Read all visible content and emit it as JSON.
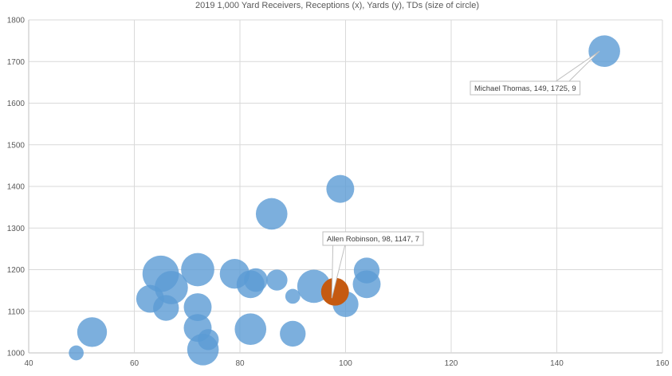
{
  "chart_data": {
    "type": "bubble",
    "title": "2019 1,000 Yard Receivers, Receptions (x), Yards (y), TDs (size of circle)",
    "xlabel": "",
    "ylabel": "",
    "xlim": [
      40,
      160
    ],
    "ylim": [
      1000,
      1800
    ],
    "xticks": [
      40,
      60,
      80,
      100,
      120,
      140,
      160
    ],
    "yticks": [
      1000,
      1100,
      1200,
      1300,
      1400,
      1500,
      1600,
      1700,
      1800
    ],
    "grid": true,
    "colors": {
      "default": "#5b9bd5",
      "highlight": "#c55a11"
    },
    "points": [
      {
        "x": 149,
        "y": 1725,
        "r": 9
      },
      {
        "x": 99,
        "y": 1394,
        "r": 7
      },
      {
        "x": 86,
        "y": 1334,
        "r": 9
      },
      {
        "x": 104,
        "y": 1198,
        "r": 6
      },
      {
        "x": 104,
        "y": 1165,
        "r": 7
      },
      {
        "x": 94,
        "y": 1160,
        "r": 10
      },
      {
        "x": 100,
        "y": 1117,
        "r": 6
      },
      {
        "x": 90,
        "y": 1136,
        "r": 2
      },
      {
        "x": 87,
        "y": 1175,
        "r": 4
      },
      {
        "x": 83,
        "y": 1175,
        "r": 5
      },
      {
        "x": 82,
        "y": 1165,
        "r": 7
      },
      {
        "x": 79,
        "y": 1190,
        "r": 8
      },
      {
        "x": 72,
        "y": 1200,
        "r": 10
      },
      {
        "x": 65,
        "y": 1190,
        "r": 12
      },
      {
        "x": 67,
        "y": 1157,
        "r": 10
      },
      {
        "x": 63,
        "y": 1130,
        "r": 7
      },
      {
        "x": 66,
        "y": 1108,
        "r": 6
      },
      {
        "x": 72,
        "y": 1110,
        "r": 7
      },
      {
        "x": 72,
        "y": 1060,
        "r": 7
      },
      {
        "x": 74,
        "y": 1032,
        "r": 4
      },
      {
        "x": 73,
        "y": 1008,
        "r": 9
      },
      {
        "x": 82,
        "y": 1057,
        "r": 9
      },
      {
        "x": 90,
        "y": 1046,
        "r": 6
      },
      {
        "x": 52,
        "y": 1050,
        "r": 8
      },
      {
        "x": 49,
        "y": 1000,
        "r": 2
      },
      {
        "x": 98,
        "y": 1147,
        "r": 7,
        "highlight": true
      }
    ],
    "annotations": [
      {
        "text": "Michael Thomas, 149, 1725, 9",
        "x": 149,
        "y": 1725
      },
      {
        "text": "Allen Robinson, 98, 1147, 7",
        "x": 98,
        "y": 1147
      }
    ]
  }
}
